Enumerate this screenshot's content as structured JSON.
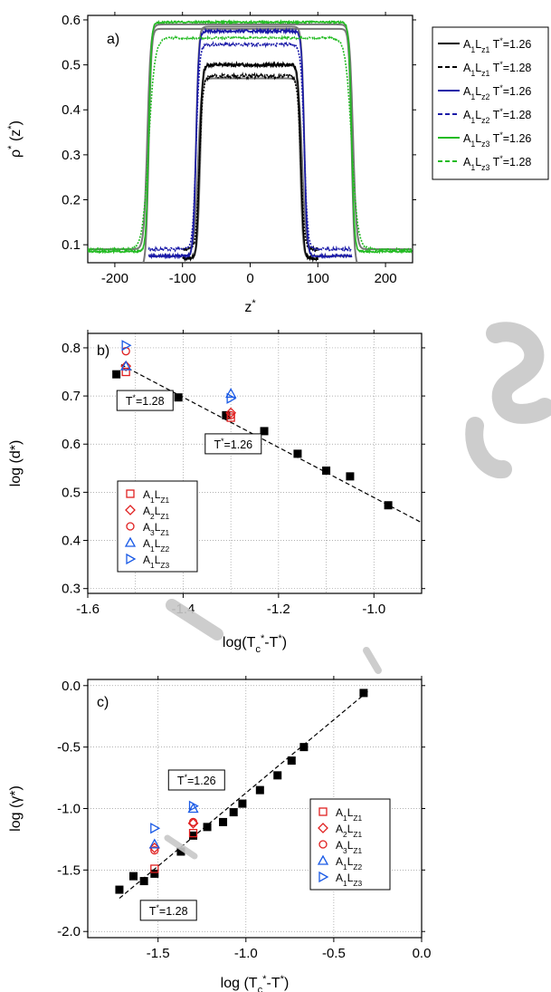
{
  "chart_data": [
    {
      "panel": "a)",
      "type": "line",
      "xlabel": "z*",
      "ylabel": "ρ* (z*)",
      "xlim": [
        -240,
        240
      ],
      "ylim": [
        0.06,
        0.61
      ],
      "xticks": [
        -200,
        -100,
        0,
        100,
        200
      ],
      "xtick_labels": [
        "-200",
        "-100",
        "0",
        "100",
        "200"
      ],
      "yticks": [
        0.1,
        0.2,
        0.3,
        0.4,
        0.5,
        0.6
      ],
      "ytick_labels": [
        "0.1",
        "0.2",
        "0.3",
        "0.4",
        "0.5",
        "0.6"
      ],
      "grid": false,
      "legend_position": "outside-right",
      "profiles": [
        {
          "name": "A₁L_z1 T*=1.26",
          "color": "#000000",
          "dash": "solid",
          "plateau": 0.5,
          "base": 0.07,
          "half_width": 75,
          "width": 4,
          "zmax": 100,
          "noise": 0.004
        },
        {
          "name": "A₁L_z1 T*=1.28",
          "color": "#000000",
          "dash": "dashed",
          "plateau": 0.475,
          "base": 0.09,
          "half_width": 75,
          "width": 5,
          "zmax": 100,
          "noise": 0.004
        },
        {
          "name": "A₁L_z2 T*=1.26",
          "color": "#1a1aa8",
          "dash": "solid",
          "plateau": 0.575,
          "base": 0.075,
          "half_width": 80,
          "width": 4,
          "zmax": 150,
          "noise": 0.003
        },
        {
          "name": "A₁L_z2 T*=1.28",
          "color": "#1a1aa8",
          "dash": "dashed",
          "plateau": 0.545,
          "base": 0.09,
          "half_width": 80,
          "width": 5,
          "zmax": 150,
          "noise": 0.003
        },
        {
          "name": "A₁L_z3 T*=1.26",
          "color": "#22bb22",
          "dash": "solid",
          "plateau": 0.595,
          "base": 0.085,
          "half_width": 150,
          "width": 4,
          "zmax": 240,
          "noise": 0.002
        },
        {
          "name": "A₁L_z3 T*=1.28",
          "color": "#22bb22",
          "dash": "dashed",
          "plateau": 0.56,
          "base": 0.09,
          "half_width": 150,
          "width": 9,
          "zmax": 240,
          "noise": 0.002
        }
      ],
      "fits": [
        {
          "plateau": 0.5,
          "base": 0.07,
          "half_width": 74,
          "width": 4,
          "zmax": 100
        },
        {
          "plateau": 0.47,
          "base": 0.09,
          "half_width": 77,
          "width": 5,
          "zmax": 100
        },
        {
          "plateau": 0.585,
          "base": 0.075,
          "half_width": 80,
          "width": 4,
          "zmax": 150
        },
        {
          "plateau": 0.58,
          "base": 0.05,
          "half_width": 150,
          "width": 4,
          "zmax": 240
        },
        {
          "plateau": 0.59,
          "base": 0.09,
          "half_width": 152,
          "width": 5,
          "zmax": 240
        }
      ]
    },
    {
      "panel": "b)",
      "type": "scatter",
      "xlabel": "log(T_c* - T*)",
      "ylabel": "log (d*)",
      "xlim": [
        -1.6,
        -0.9
      ],
      "ylim": [
        0.29,
        0.83
      ],
      "xticks": [
        -1.6,
        -1.4,
        -1.2,
        -1.0
      ],
      "xtick_labels": [
        "-1.6",
        "-1.4",
        "-1.2",
        "-1.0"
      ],
      "yticks": [
        0.3,
        0.4,
        0.5,
        0.6,
        0.7,
        0.8
      ],
      "ytick_labels": [
        "0.3",
        "0.4",
        "0.5",
        "0.6",
        "0.7",
        "0.8"
      ],
      "grid": true,
      "legend_position": "lower-left",
      "reference_points": {
        "x": [
          -1.54,
          -1.41,
          -1.31,
          -1.23,
          -1.16,
          -1.1,
          -1.05,
          -0.97
        ],
        "y": [
          0.745,
          0.697,
          0.66,
          0.627,
          0.58,
          0.545,
          0.533,
          0.473
        ]
      },
      "fit_line": {
        "x": [
          -1.53,
          -0.9
        ],
        "y": [
          0.765,
          0.437
        ]
      },
      "series": [
        {
          "name": "A₁L_Z1",
          "marker": "square",
          "color": "#e02020",
          "x": [
            -1.52,
            -1.3
          ],
          "y": [
            0.75,
            0.655
          ]
        },
        {
          "name": "A₂L_Z1",
          "marker": "diamond",
          "color": "#e02020",
          "x": [
            -1.52,
            -1.3
          ],
          "y": [
            0.762,
            0.665
          ]
        },
        {
          "name": "A₃L_Z1",
          "marker": "circle",
          "color": "#e02020",
          "x": [
            -1.52,
            -1.3
          ],
          "y": [
            0.793,
            0.66
          ]
        },
        {
          "name": "A₁L_Z2",
          "marker": "triangle-up",
          "color": "#1a5ae6",
          "x": [
            -1.52,
            -1.3
          ],
          "y": [
            0.762,
            0.705
          ]
        },
        {
          "name": "A₁L_Z3",
          "marker": "triangle-right",
          "color": "#1a5ae6",
          "x": [
            -1.52,
            -1.3
          ],
          "y": [
            0.805,
            0.695
          ]
        }
      ],
      "annotations": [
        {
          "text": "T*=1.28",
          "x": -1.535,
          "y": 0.685
        },
        {
          "text": "T*=1.26",
          "x": -1.35,
          "y": 0.595
        }
      ]
    },
    {
      "panel": "c)",
      "type": "scatter",
      "xlabel": "log (T_c* - T*)",
      "ylabel": "log (γ*)",
      "xlim": [
        -1.9,
        0.0
      ],
      "ylim": [
        -2.05,
        0.05
      ],
      "xticks": [
        -1.5,
        -1.0,
        -0.5,
        0.0
      ],
      "xtick_labels": [
        "-1.5",
        "-1.0",
        "-0.5",
        "0.0"
      ],
      "yticks": [
        -2.0,
        -1.5,
        -1.0,
        -0.5,
        0.0
      ],
      "ytick_labels": [
        "-2.0",
        "-1.5",
        "-1.0",
        "-0.5",
        "0.0"
      ],
      "grid": true,
      "legend_position": "right",
      "reference_points": {
        "x": [
          -1.72,
          -1.64,
          -1.58,
          -1.52,
          -1.37,
          -1.3,
          -1.22,
          -1.13,
          -1.07,
          -1.02,
          -0.92,
          -0.82,
          -0.74,
          -0.67,
          -0.33
        ],
        "y": [
          -1.66,
          -1.55,
          -1.59,
          -1.53,
          -1.35,
          -1.22,
          -1.15,
          -1.11,
          -1.03,
          -0.96,
          -0.85,
          -0.73,
          -0.61,
          -0.5,
          -0.06
        ]
      },
      "fit_line": {
        "x": [
          -1.72,
          -0.3
        ],
        "y": [
          -1.73,
          -0.04
        ]
      },
      "series": [
        {
          "name": "A₁L_Z1",
          "marker": "square",
          "color": "#e02020",
          "x": [
            -1.52,
            -1.3
          ],
          "y": [
            -1.49,
            -1.2
          ]
        },
        {
          "name": "A₂L_Z1",
          "marker": "diamond",
          "color": "#e02020",
          "x": [
            -1.52,
            -1.3
          ],
          "y": [
            -1.32,
            -1.12
          ]
        },
        {
          "name": "A₃L_Z1",
          "marker": "circle",
          "color": "#e02020",
          "x": [
            -1.52,
            -1.3
          ],
          "y": [
            -1.34,
            -1.11
          ]
        },
        {
          "name": "A₁L_Z2",
          "marker": "triangle-up",
          "color": "#1a5ae6",
          "x": [
            -1.52,
            -1.3
          ],
          "y": [
            -1.29,
            -1.0
          ]
        },
        {
          "name": "A₁L_Z3",
          "marker": "triangle-right",
          "color": "#1a5ae6",
          "x": [
            -1.52,
            -1.3
          ],
          "y": [
            -1.16,
            -0.98
          ]
        }
      ],
      "annotations": [
        {
          "text": "T*=1.26",
          "x": -1.43,
          "y": -0.79
        },
        {
          "text": "T*=1.28",
          "x": -1.59,
          "y": -1.85
        }
      ]
    }
  ],
  "colors": {
    "black": "#000000",
    "fit_gray": "#777777",
    "blue": "#1a1aa8",
    "green": "#22bb22",
    "red": "#e02020",
    "light_blue": "#1a5ae6",
    "watermark": "#c8c8c8"
  }
}
